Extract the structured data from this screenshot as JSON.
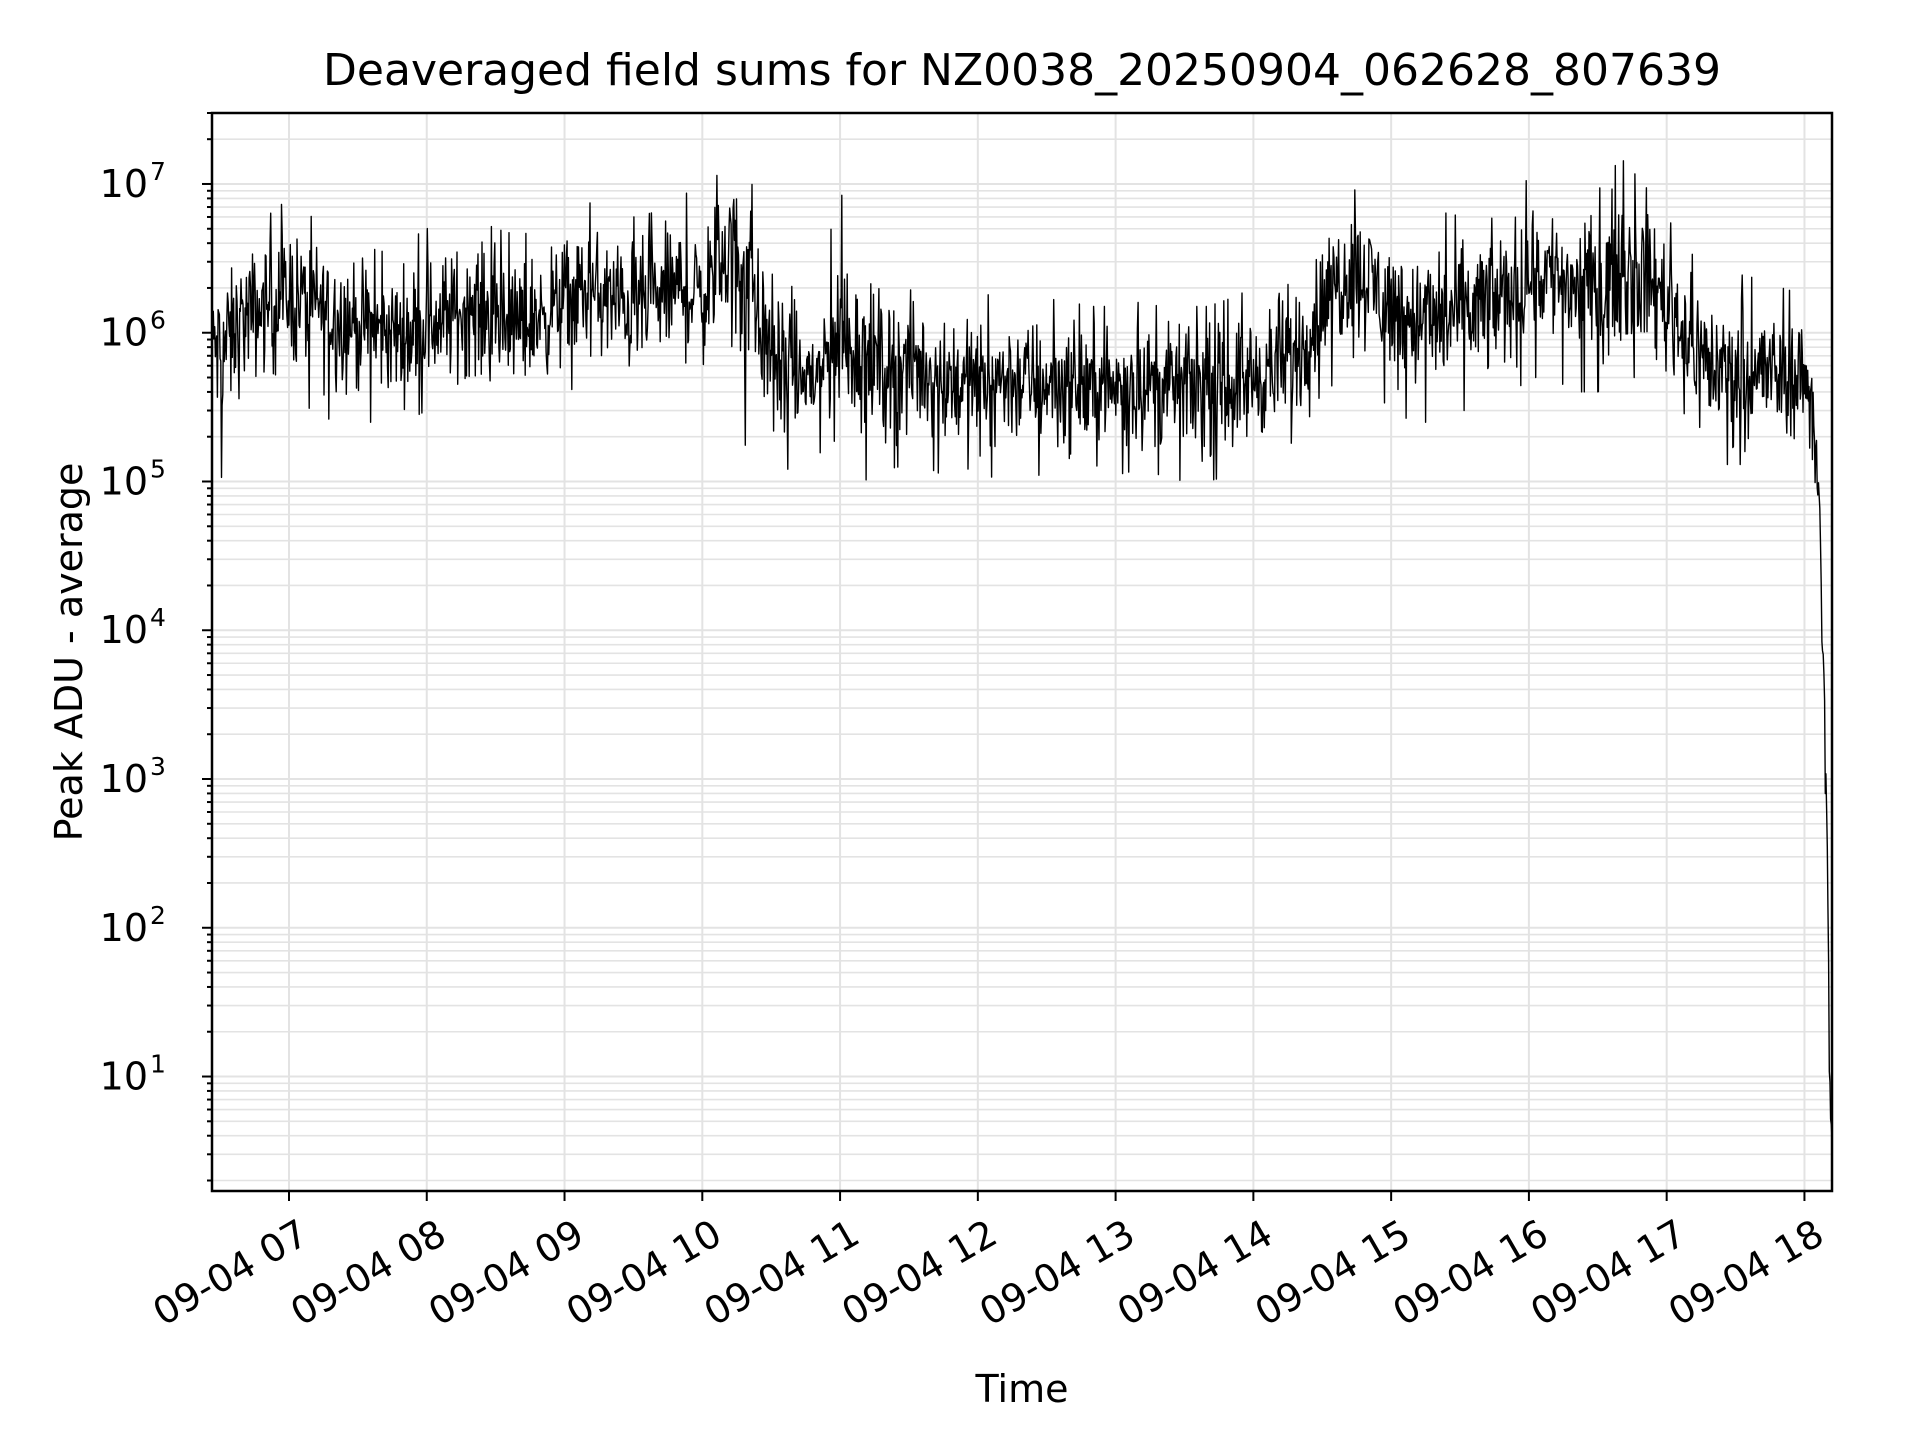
{
  "chart_data": {
    "type": "line",
    "title": "Deaveraged field sums for NZ0038_20250904_062628_807639",
    "xlabel": "Time",
    "ylabel": "Peak ADU - average",
    "y_scale": "log",
    "ylim": [
      1.7,
      30000000
    ],
    "xlim": [
      "09-04 06:26:28",
      "09-04 18:12"
    ],
    "grid": true,
    "line_color": "#000000",
    "grid_color": "#e3e3e3",
    "x_ticks": [
      {
        "label": "09-04 07",
        "hour": 7
      },
      {
        "label": "09-04 08",
        "hour": 8
      },
      {
        "label": "09-04 09",
        "hour": 9
      },
      {
        "label": "09-04 10",
        "hour": 10
      },
      {
        "label": "09-04 11",
        "hour": 11
      },
      {
        "label": "09-04 12",
        "hour": 12
      },
      {
        "label": "09-04 13",
        "hour": 13
      },
      {
        "label": "09-04 14",
        "hour": 14
      },
      {
        "label": "09-04 15",
        "hour": 15
      },
      {
        "label": "09-04 16",
        "hour": 16
      },
      {
        "label": "09-04 17",
        "hour": 17
      },
      {
        "label": "09-04 18",
        "hour": 18
      }
    ],
    "y_ticks": [
      {
        "base": "10",
        "exp": "1",
        "value": 10
      },
      {
        "base": "10",
        "exp": "2",
        "value": 100
      },
      {
        "base": "10",
        "exp": "3",
        "value": 1000
      },
      {
        "base": "10",
        "exp": "4",
        "value": 10000
      },
      {
        "base": "10",
        "exp": "5",
        "value": 100000
      },
      {
        "base": "10",
        "exp": "6",
        "value": 1000000
      },
      {
        "base": "10",
        "exp": "7",
        "value": 10000000
      }
    ],
    "series": [
      {
        "x": [
          "09-04 06:26:28",
          "09-04 06:30",
          "09-04 06:40",
          "09-04 06:50",
          "09-04 07:00",
          "09-04 07:10",
          "09-04 07:20",
          "09-04 07:30",
          "09-04 07:40",
          "09-04 07:50",
          "09-04 08:00",
          "09-04 08:10",
          "09-04 08:20",
          "09-04 08:30",
          "09-04 08:40",
          "09-04 08:50",
          "09-04 09:00",
          "09-04 09:10",
          "09-04 09:20",
          "09-04 09:30",
          "09-04 09:40",
          "09-04 09:50",
          "09-04 10:00",
          "09-04 10:10",
          "09-04 10:20",
          "09-04 10:30",
          "09-04 10:40",
          "09-04 10:50",
          "09-04 11:00",
          "09-04 11:10",
          "09-04 11:20",
          "09-04 11:30",
          "09-04 11:40",
          "09-04 11:50",
          "09-04 12:00",
          "09-04 12:10",
          "09-04 12:20",
          "09-04 12:30",
          "09-04 12:40",
          "09-04 12:50",
          "09-04 13:00",
          "09-04 13:10",
          "09-04 13:20",
          "09-04 13:30",
          "09-04 13:40",
          "09-04 13:50",
          "09-04 14:00",
          "09-04 14:10",
          "09-04 14:20",
          "09-04 14:30",
          "09-04 14:40",
          "09-04 14:50",
          "09-04 15:00",
          "09-04 15:10",
          "09-04 15:20",
          "09-04 15:30",
          "09-04 15:40",
          "09-04 15:50",
          "09-04 16:00",
          "09-04 16:10",
          "09-04 16:20",
          "09-04 16:30",
          "09-04 16:40",
          "09-04 16:50",
          "09-04 17:00",
          "09-04 17:10",
          "09-04 17:20",
          "09-04 17:30",
          "09-04 17:40",
          "09-04 17:50",
          "09-04 18:00",
          "09-04 18:03",
          "09-04 18:06",
          "09-04 18:08",
          "09-04 18:10",
          "09-04 18:11",
          "09-04 18:12"
        ],
        "y": [
          900000,
          800000,
          1200000,
          1500000,
          1800000,
          1600000,
          1400000,
          1200000,
          1000000,
          1000000,
          1100000,
          1300000,
          1500000,
          1200000,
          1100000,
          1300000,
          1700000,
          1900000,
          1600000,
          1500000,
          1700000,
          2000000,
          1700000,
          4000000,
          3000000,
          700000,
          500000,
          500000,
          900000,
          800000,
          600000,
          600000,
          550000,
          500000,
          450000,
          500000,
          480000,
          470000,
          450000,
          430000,
          430000,
          470000,
          450000,
          460000,
          420000,
          450000,
          500000,
          550000,
          700000,
          1500000,
          2800000,
          2500000,
          1500000,
          1300000,
          1200000,
          1300000,
          1500000,
          1800000,
          2500000,
          2700000,
          2000000,
          2000000,
          2800000,
          2500000,
          1800000,
          900000,
          600000,
          550000,
          550000,
          520000,
          500000,
          400000,
          120000,
          12000,
          300,
          10,
          3.8
        ],
        "y_max": [
          2000000,
          3000000,
          5000000,
          6000000,
          8000000,
          6000000,
          5000000,
          4000000,
          3500000,
          4000000,
          5000000,
          5500000,
          6000000,
          5000000,
          4500000,
          5000000,
          6000000,
          7500000,
          7000000,
          6000000,
          6500000,
          9000000,
          8000000,
          14000000,
          13000000,
          2500000,
          2000000,
          2000000,
          9000000,
          3500000,
          2500000,
          2500000,
          2200000,
          1800000,
          1800000,
          1800000,
          1900000,
          1700000,
          1600000,
          1500000,
          1500000,
          1600000,
          1500000,
          1500000,
          1500000,
          1700000,
          2000000,
          3000000,
          4000000,
          6000000,
          10000000,
          8000000,
          6000000,
          5000000,
          6000000,
          7000000,
          7000000,
          7500000,
          11000000,
          10000000,
          9000000,
          9000000,
          15000000,
          10000000,
          6000000,
          3500000,
          2500000,
          2500000,
          2300000,
          2000000,
          1800000,
          1200000,
          150000,
          15000,
          500,
          20,
          5
        ],
        "y_min": [
          200000,
          100000,
          300000,
          350000,
          400000,
          300000,
          250000,
          250000,
          250000,
          250000,
          300000,
          300000,
          350000,
          300000,
          300000,
          350000,
          400000,
          450000,
          400000,
          350000,
          400000,
          450000,
          400000,
          500000,
          150000,
          100000,
          130000,
          150000,
          200000,
          100000,
          120000,
          130000,
          120000,
          100000,
          90000,
          120000,
          110000,
          110000,
          100000,
          110000,
          110000,
          120000,
          110000,
          100000,
          100000,
          110000,
          120000,
          150000,
          200000,
          400000,
          500000,
          450000,
          300000,
          250000,
          250000,
          300000,
          300000,
          350000,
          500000,
          500000,
          400000,
          400000,
          500000,
          500000,
          300000,
          150000,
          130000,
          130000,
          130000,
          130000,
          130000,
          90000,
          20000,
          1500,
          30,
          3.5,
          3.8
        ]
      }
    ]
  }
}
